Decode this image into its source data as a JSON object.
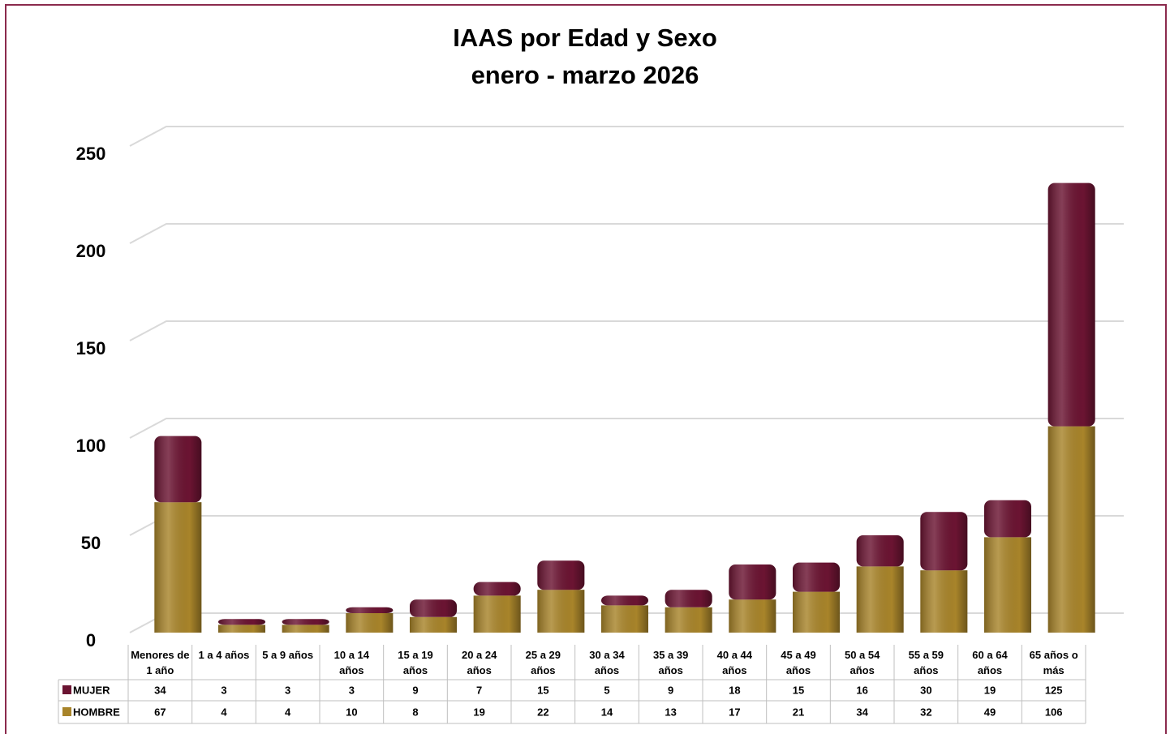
{
  "chart_data": {
    "type": "bar",
    "stacked": true,
    "title": "IAAS por Edad y Sexo",
    "subtitle": "enero - marzo 2026",
    "categories": [
      "Menores de 1 año",
      "1 a 4 años",
      "5 a 9 años",
      "10 a 14 años",
      "15 a 19 años",
      "20 a 24 años",
      "25 a 29 años",
      "30 a 34 años",
      "35 a 39 años",
      "40 a 44 años",
      "45 a 49 años",
      "50 a 54 años",
      "55 a 59 años",
      "60 a 64 años",
      "65 años o más"
    ],
    "series": [
      {
        "name": "MUJER",
        "color": "#6b1432",
        "values": [
          34,
          3,
          3,
          3,
          9,
          7,
          15,
          5,
          9,
          18,
          15,
          16,
          30,
          19,
          125
        ]
      },
      {
        "name": "HOMBRE",
        "color": "#a8842a",
        "values": [
          67,
          4,
          4,
          10,
          8,
          19,
          22,
          14,
          13,
          17,
          21,
          34,
          32,
          49,
          106
        ]
      }
    ],
    "ylim": [
      0,
      250
    ],
    "yticks": [
      0,
      50,
      100,
      150,
      200,
      250
    ],
    "grid": true
  }
}
